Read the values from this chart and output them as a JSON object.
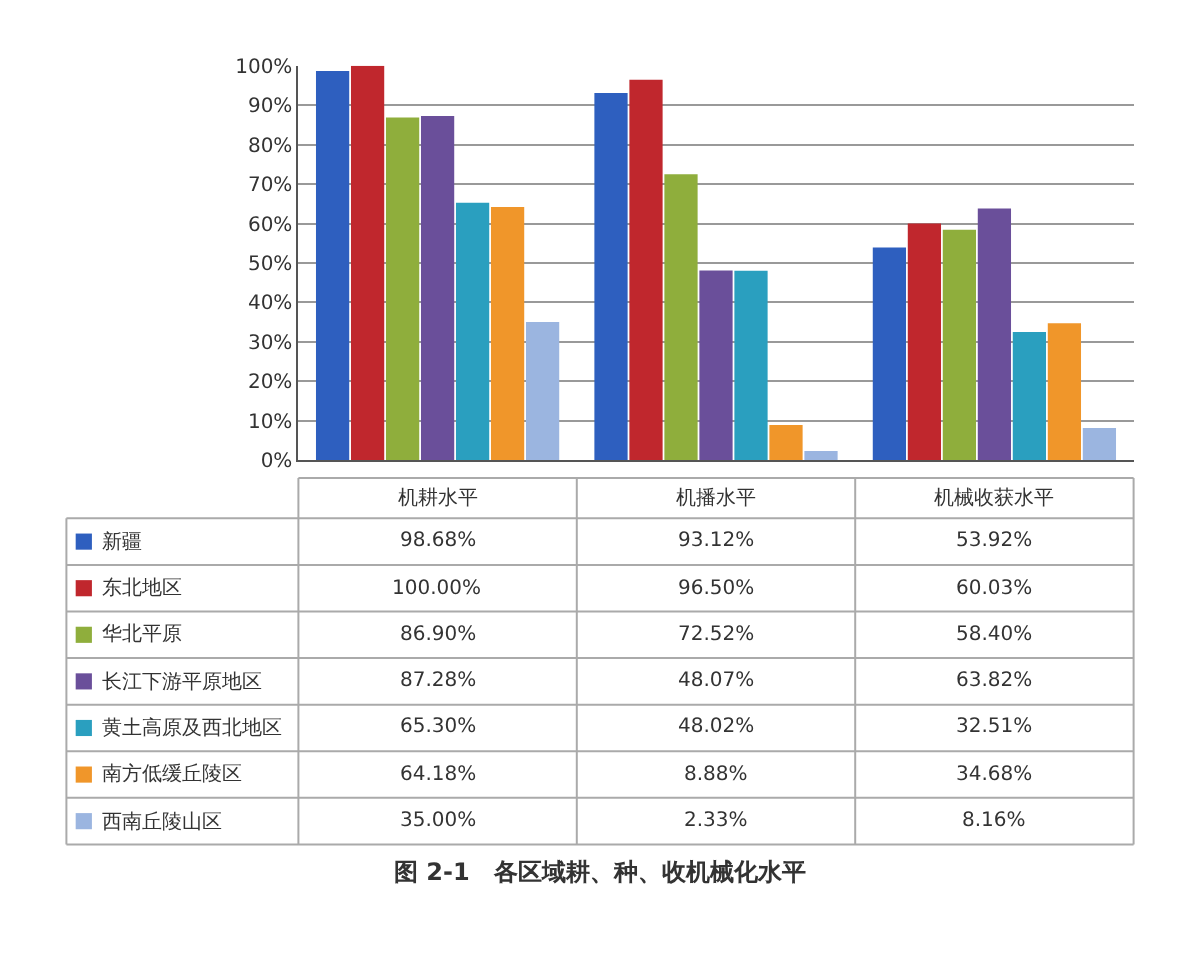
{
  "chart_data": {
    "type": "bar",
    "title": "图 2-1　各区域耕、种、收机械化水平",
    "categories": [
      "机耕水平",
      "机播水平",
      "机械收获水平"
    ],
    "series": [
      {
        "name": "新疆",
        "color": "#2e5fbf",
        "values": [
          98.68,
          93.12,
          53.92
        ],
        "value_labels": [
          "98.68%",
          "93.12%",
          "53.92%"
        ]
      },
      {
        "name": "东北地区",
        "color": "#c0272d",
        "values": [
          100.0,
          96.5,
          60.03
        ],
        "value_labels": [
          "100.00%",
          "96.50%",
          "60.03%"
        ]
      },
      {
        "name": "华北平原",
        "color": "#8fae3c",
        "values": [
          86.9,
          72.52,
          58.4
        ],
        "value_labels": [
          "86.90%",
          "72.52%",
          "58.40%"
        ]
      },
      {
        "name": "长江下游平原地区",
        "color": "#6a4f9a",
        "values": [
          87.28,
          48.07,
          63.82
        ],
        "value_labels": [
          "87.28%",
          "48.07%",
          "63.82%"
        ]
      },
      {
        "name": "黄土高原及西北地区",
        "color": "#2a9fbf",
        "values": [
          65.3,
          48.02,
          32.51
        ],
        "value_labels": [
          "65.30%",
          "48.02%",
          "32.51%"
        ]
      },
      {
        "name": "南方低缓丘陵区",
        "color": "#f0962a",
        "values": [
          64.18,
          8.88,
          34.68
        ],
        "value_labels": [
          "64.18%",
          "8.88%",
          "34.68%"
        ]
      },
      {
        "name": "西南丘陵山区",
        "color": "#9bb5e0",
        "values": [
          35.0,
          2.33,
          8.16
        ],
        "value_labels": [
          "35.00%",
          "2.33%",
          "8.16%"
        ]
      }
    ],
    "ylim": [
      0,
      100
    ],
    "yticks": [
      {
        "value": 0,
        "label": "0%"
      },
      {
        "value": 10,
        "label": "10%"
      },
      {
        "value": 20,
        "label": "20%"
      },
      {
        "value": 30,
        "label": "30%"
      },
      {
        "value": 40,
        "label": "40%"
      },
      {
        "value": 50,
        "label": "50%"
      },
      {
        "value": 60,
        "label": "60%"
      },
      {
        "value": 70,
        "label": "70%"
      },
      {
        "value": 80,
        "label": "80%"
      },
      {
        "value": 90,
        "label": "90%"
      },
      {
        "value": 100,
        "label": "100%"
      }
    ],
    "grid": "y",
    "legend": "bottom"
  }
}
